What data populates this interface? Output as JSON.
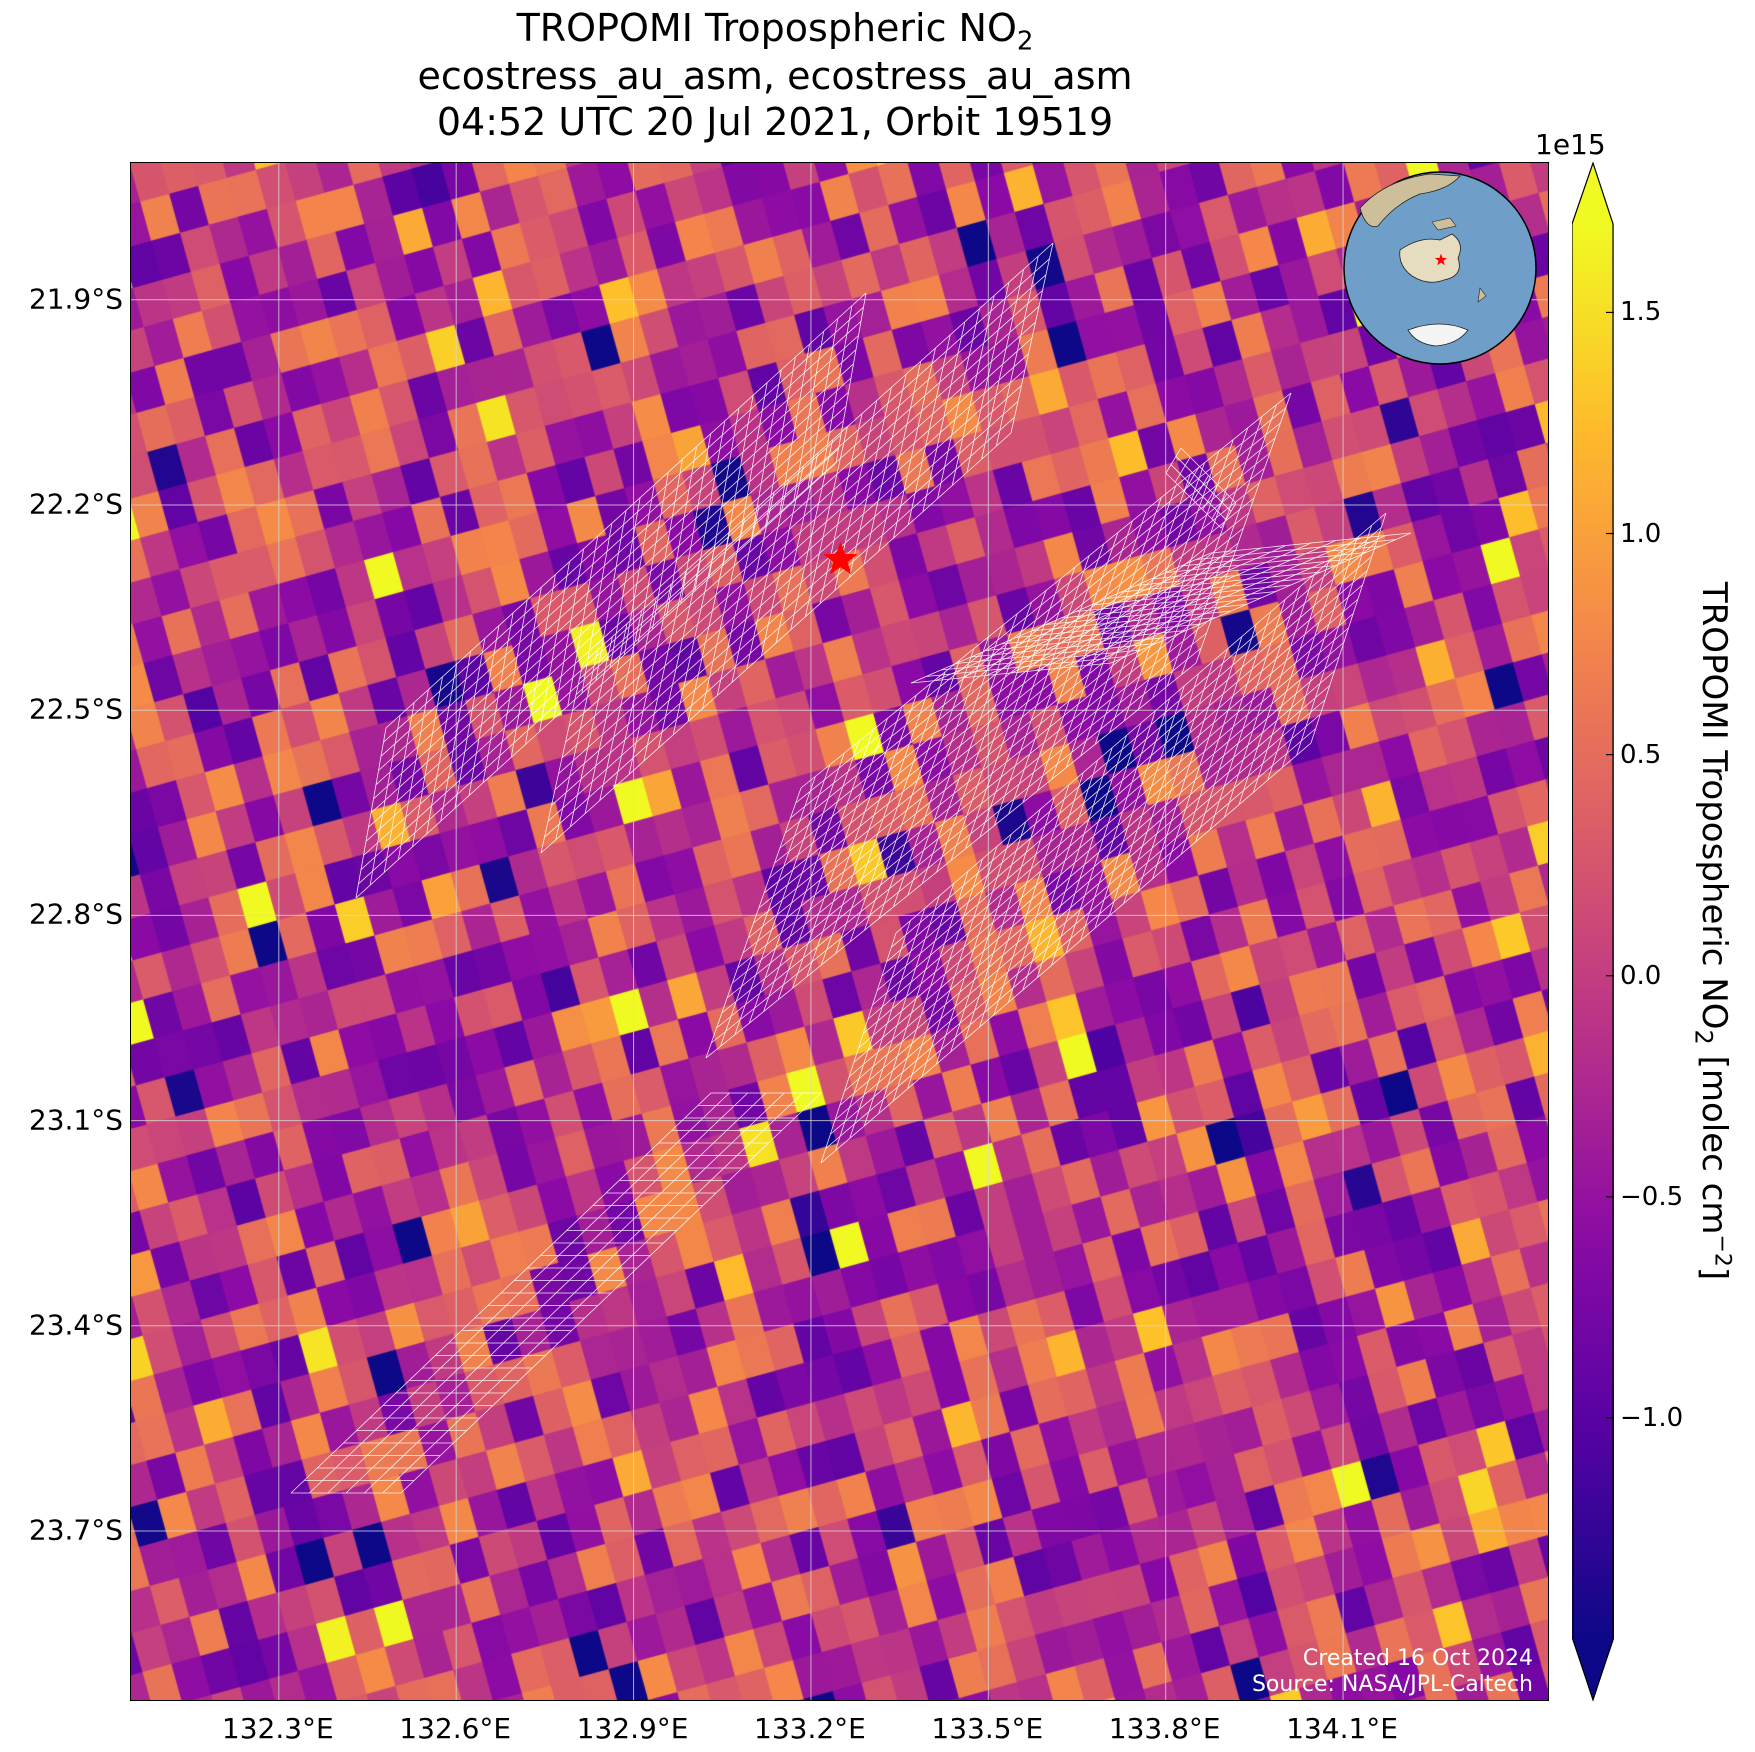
{
  "title": {
    "line1_prefix": "TROPOMI Tropospheric NO",
    "line1_sub": "2",
    "line2": "ecostress_au_asm, ecostress_au_asm",
    "line3": "04:52 UTC 20 Jul 2021, Orbit 19519"
  },
  "map": {
    "lon_range": [
      132.05,
      134.45
    ],
    "lat_range": [
      -23.95,
      -21.7
    ],
    "lon_ticks": [
      "132.3°E",
      "132.6°E",
      "132.9°E",
      "133.2°E",
      "133.5°E",
      "133.8°E",
      "134.1°E"
    ],
    "lat_ticks": [
      "21.9°S",
      "22.2°S",
      "22.5°S",
      "22.8°S",
      "23.1°S",
      "23.4°S",
      "23.7°S"
    ],
    "lon_tick_values": [
      132.3,
      132.6,
      132.9,
      133.2,
      133.5,
      133.8,
      134.1
    ],
    "lat_tick_values": [
      -21.9,
      -22.2,
      -22.5,
      -22.8,
      -23.1,
      -23.4,
      -23.7
    ],
    "site_marker": {
      "lon": 133.25,
      "lat": -22.28,
      "symbol": "star",
      "color": "#ff0000"
    },
    "overlay_color": "#ffffff"
  },
  "colorbar": {
    "label_prefix": "TROPOMI Tropospheric NO",
    "label_sub": "2",
    "label_units": " [molec cm",
    "label_exp": "−2",
    "label_close": "]",
    "multiplier": "1e15",
    "range": [
      -1.5,
      1.7
    ],
    "ticks": [
      "1.5",
      "1.0",
      "0.5",
      "0.0",
      "−0.5",
      "−1.0"
    ],
    "tick_values": [
      1.5,
      1.0,
      0.5,
      0.0,
      -0.5,
      -1.0
    ],
    "colormap": "plasma",
    "extend": "both"
  },
  "credit": {
    "line1": "Created 16 Oct 2024",
    "line2": "Source: NASA/JPL-Caltech"
  },
  "inset_globe": {
    "ocean_color": "#6f9ec8",
    "land_color": "#e6dcc0",
    "marker_color": "#ff0000"
  }
}
